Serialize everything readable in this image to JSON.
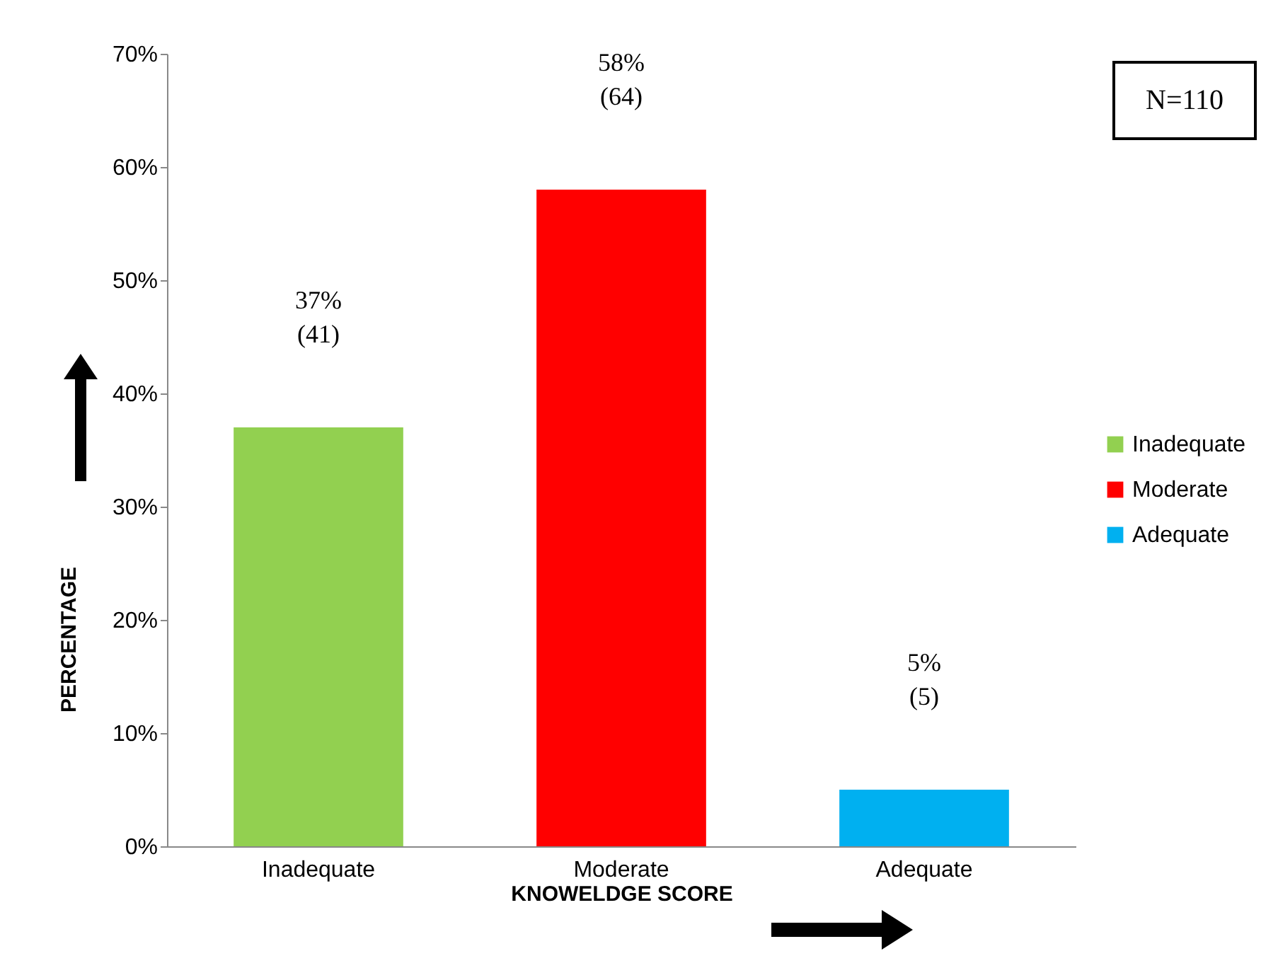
{
  "chart_data": {
    "type": "bar",
    "xlabel": "KNOWELDGE SCORE",
    "ylabel": "PERCENTAGE",
    "categories": [
      "Inadequate",
      "Moderate",
      "Adequate"
    ],
    "series": [
      {
        "name": "Inadequate",
        "color": "#92d050",
        "values": [
          37,
          null,
          null
        ],
        "value_labels": [
          "37% (41)",
          null,
          null
        ]
      },
      {
        "name": "Moderate",
        "color": "#ff0000",
        "values": [
          null,
          58,
          null
        ],
        "value_labels": [
          null,
          "58% (64)",
          null
        ]
      },
      {
        "name": "Adequate",
        "color": "#00b0f0",
        "values": [
          null,
          null,
          5
        ],
        "value_labels": [
          null,
          null,
          "5% (5)"
        ]
      }
    ],
    "ylim": [
      0,
      70
    ],
    "yticks": [
      {
        "value": 0,
        "label": "0%"
      },
      {
        "value": 10,
        "label": "10%"
      },
      {
        "value": 20,
        "label": "20%"
      },
      {
        "value": 30,
        "label": "30%"
      },
      {
        "value": 40,
        "label": "40%"
      },
      {
        "value": 50,
        "label": "50%"
      },
      {
        "value": 60,
        "label": "60%"
      },
      {
        "value": 70,
        "label": "70%"
      }
    ],
    "legend": "right",
    "grid": false,
    "annotations": [
      "N=110"
    ]
  }
}
